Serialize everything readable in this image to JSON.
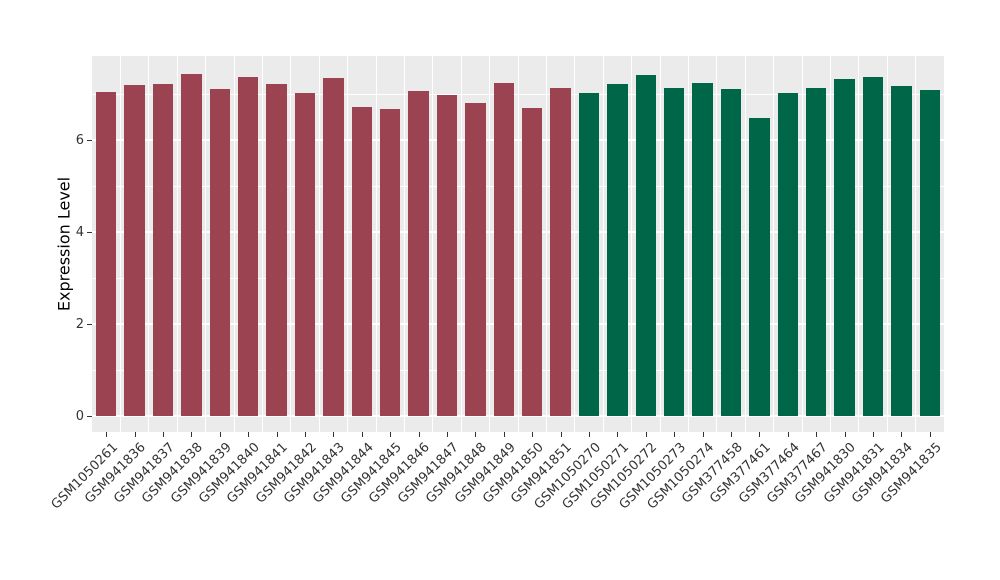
{
  "chart_data": {
    "type": "bar",
    "title": "",
    "xlabel": "",
    "ylabel": "Expression Level",
    "ylim": [
      0,
      7.83
    ],
    "yticks": [
      0,
      2,
      4,
      6
    ],
    "minor_yticks": [
      1,
      3,
      5,
      7
    ],
    "grid": "white major and minor gridlines on grey panel, vertical minors between category slots",
    "legend_position": "none",
    "categories": [
      "GSM1050261",
      "GSM941836",
      "GSM941837",
      "GSM941838",
      "GSM941839",
      "GSM941840",
      "GSM941841",
      "GSM941842",
      "GSM941843",
      "GSM941844",
      "GSM941845",
      "GSM941846",
      "GSM941847",
      "GSM941848",
      "GSM941849",
      "GSM941850",
      "GSM941851",
      "GSM1050270",
      "GSM1050271",
      "GSM1050272",
      "GSM1050273",
      "GSM1050274",
      "GSM377458",
      "GSM377461",
      "GSM377464",
      "GSM377467",
      "GSM941830",
      "GSM941831",
      "GSM941834",
      "GSM941835"
    ],
    "values": [
      7.05,
      7.19,
      7.22,
      7.43,
      7.1,
      7.36,
      7.21,
      7.02,
      7.34,
      6.71,
      6.67,
      7.07,
      6.98,
      6.8,
      7.25,
      6.69,
      7.13,
      7.02,
      7.22,
      7.41,
      7.12,
      7.25,
      7.11,
      6.48,
      7.02,
      7.13,
      7.33,
      7.38,
      7.17,
      7.09
    ],
    "groups": [
      "g1",
      "g1",
      "g1",
      "g1",
      "g1",
      "g1",
      "g1",
      "g1",
      "g1",
      "g1",
      "g1",
      "g1",
      "g1",
      "g1",
      "g1",
      "g1",
      "g1",
      "g2",
      "g2",
      "g2",
      "g2",
      "g2",
      "g2",
      "g2",
      "g2",
      "g2",
      "g2",
      "g2",
      "g2",
      "g2"
    ],
    "group_colors": {
      "g1": "#9B4351",
      "g2": "#006648"
    }
  },
  "colors": {
    "page_bg": "#FFFFFF",
    "panel_bg": "#EBEBEB",
    "gridline": "#FFFFFF",
    "axis_text": "#333333",
    "axis_title": "#000000",
    "tick_mark": "#333333"
  }
}
